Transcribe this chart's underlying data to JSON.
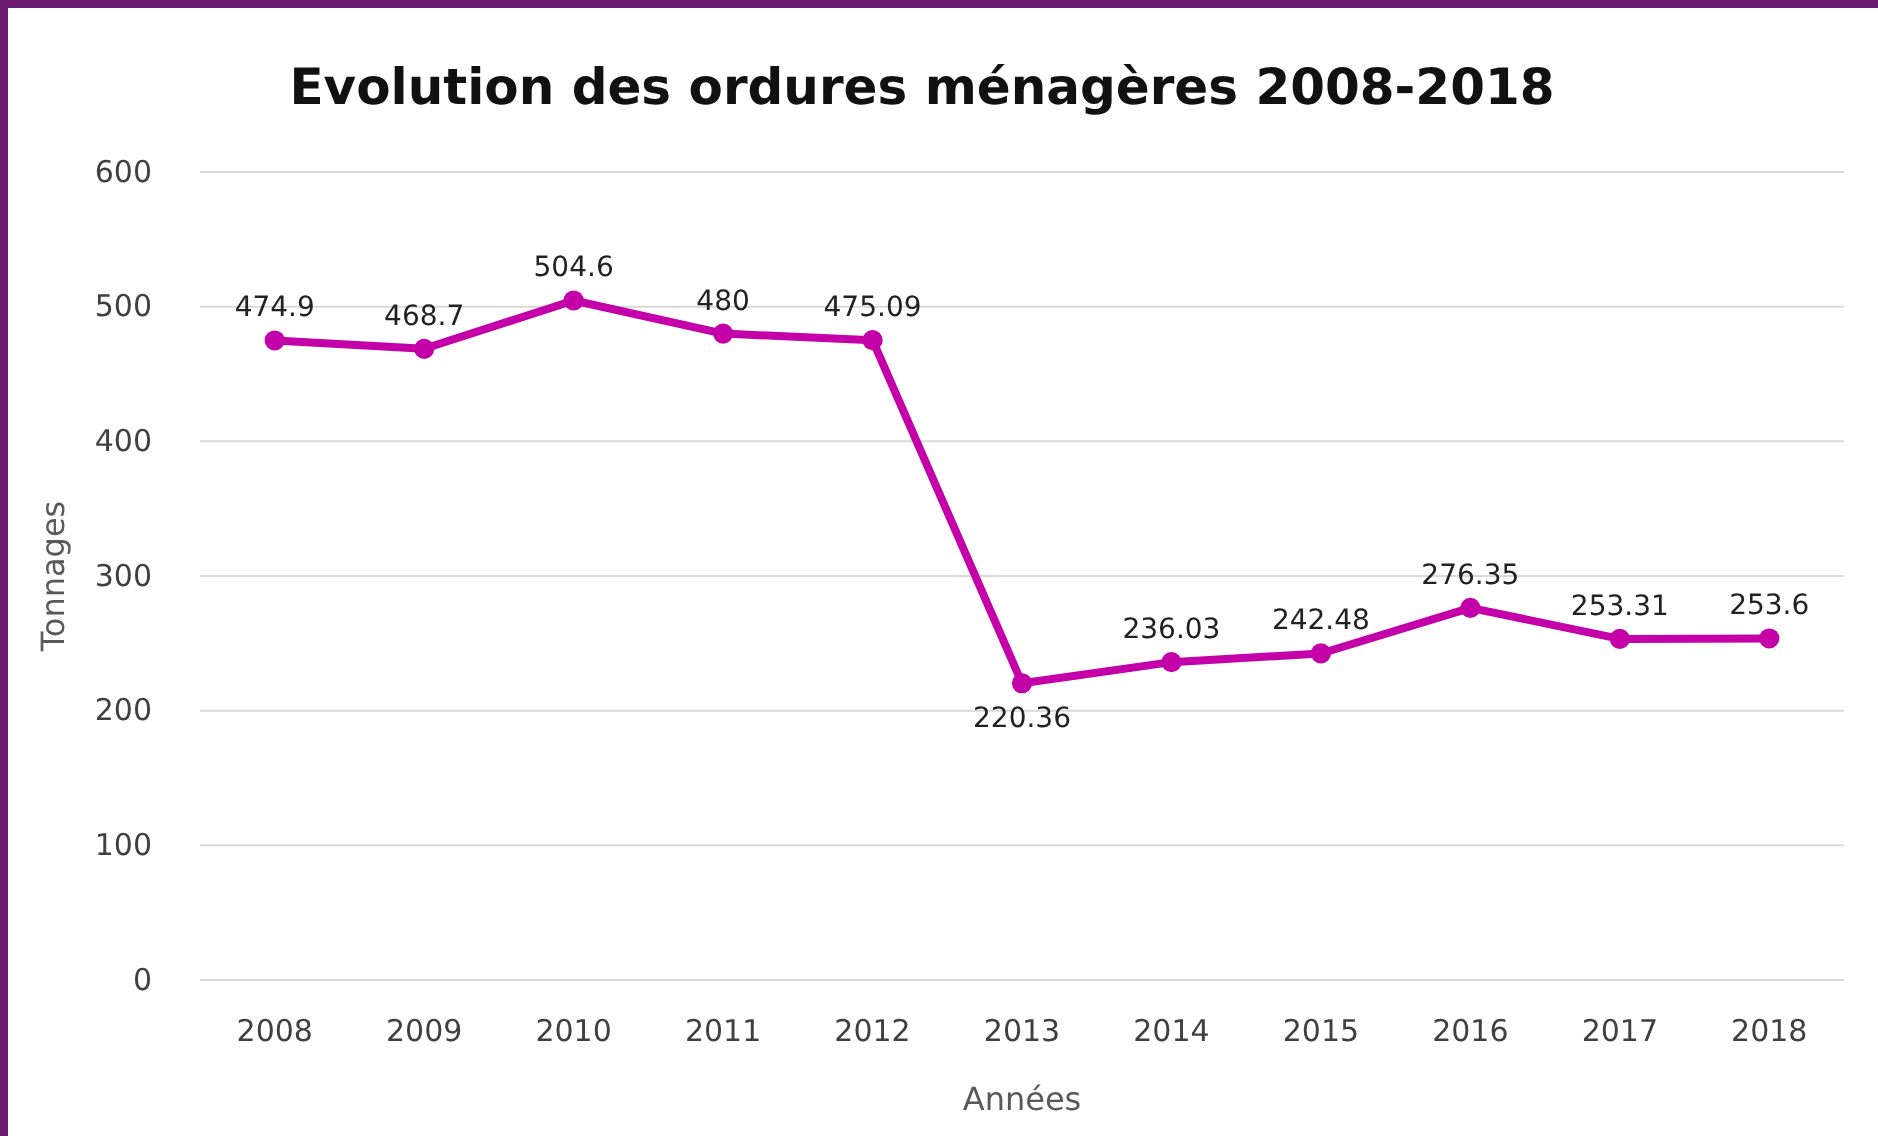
{
  "chart_data": {
    "type": "line",
    "title": "Evolution des ordures ménagères 2008-2018",
    "xlabel": "Années",
    "ylabel": "Tonnages",
    "categories": [
      "2008",
      "2009",
      "2010",
      "2011",
      "2012",
      "2013",
      "2014",
      "2015",
      "2016",
      "2017",
      "2018"
    ],
    "series": [
      {
        "color": "#c400a8",
        "values": [
          474.9,
          468.7,
          504.6,
          480,
          475.09,
          220.36,
          236.03,
          242.48,
          276.35,
          253.31,
          253.6
        ]
      }
    ],
    "ylim": [
      0,
      600
    ],
    "yticks": [
      0,
      100,
      200,
      300,
      400,
      500,
      600
    ],
    "grid": "y",
    "marker": "circle",
    "line_style": "solid",
    "data_labels": true
  }
}
